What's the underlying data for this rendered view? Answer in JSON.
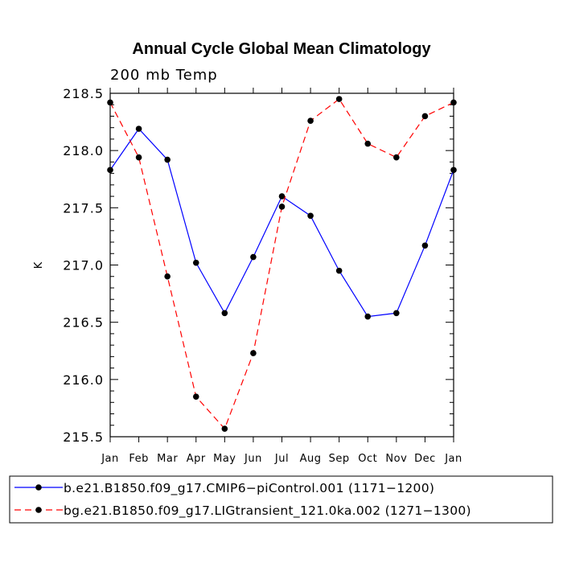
{
  "chart_data": {
    "type": "line",
    "title": "Annual Cycle Global Mean Climatology",
    "subtitle": "200 mb Temp",
    "xlabel": "",
    "ylabel": "K",
    "categories": [
      "Jan",
      "Feb",
      "Mar",
      "Apr",
      "May",
      "Jun",
      "Jul",
      "Aug",
      "Sep",
      "Oct",
      "Nov",
      "Dec",
      "Jan"
    ],
    "ylim": [
      215.5,
      218.5
    ],
    "yticks": [
      "215.5",
      "216.0",
      "216.5",
      "217.0",
      "217.5",
      "218.0",
      "218.5"
    ],
    "series": [
      {
        "name": "b.e21.B1850.f09_g17.CMIP6−piControl.001 (1171−1200)",
        "color": "#0000ff",
        "dash": "solid",
        "values": [
          217.83,
          218.19,
          217.92,
          217.02,
          216.58,
          217.07,
          217.6,
          217.43,
          216.95,
          216.55,
          216.58,
          217.17,
          217.83
        ]
      },
      {
        "name": "bg.e21.B1850.f09_g17.LIGtransient_121.0ka.002 (1271−1300)",
        "color": "#ff0000",
        "dash": "dashed",
        "values": [
          218.42,
          217.94,
          216.9,
          215.85,
          215.57,
          216.23,
          217.51,
          218.26,
          218.45,
          218.06,
          217.94,
          218.3,
          218.42
        ]
      }
    ]
  }
}
